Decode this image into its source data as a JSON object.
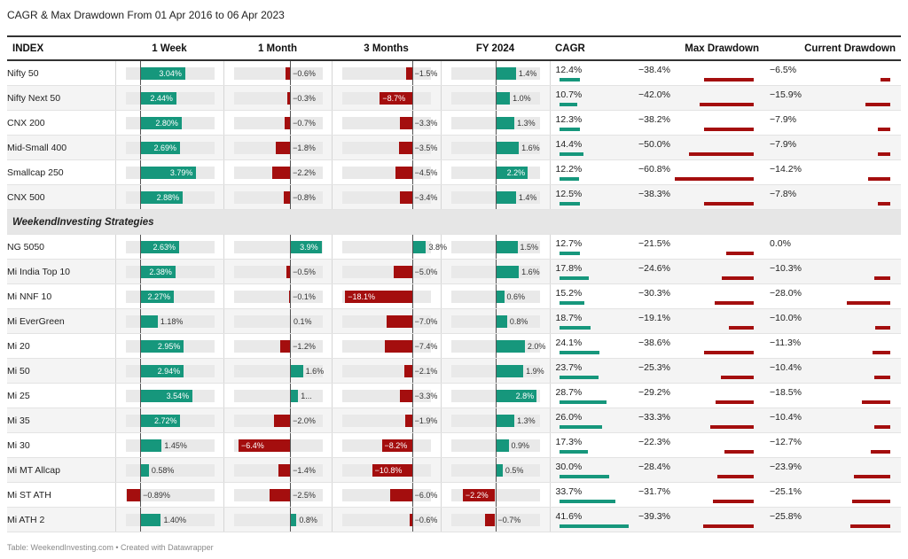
{
  "title": "CAGR & Max Drawdown From 01 Apr 2016 to 06 Apr 2023",
  "footer": "Table: WeekendInvesting.com • Created with Datawrapper",
  "colors": {
    "positive": "#16977c",
    "negative": "#a40e0e",
    "track": "#e9e9e9"
  },
  "chart_data": {
    "type": "table",
    "columns": [
      "INDEX",
      "1 Week",
      "1 Month",
      "3 Months",
      "FY 2024",
      "CAGR",
      "Max Drawdown",
      "Current Drawdown"
    ],
    "section_label": "WeekendInvesting Strategies",
    "indices": [
      {
        "name": "Nifty 50",
        "w1": "3.04%",
        "m1": "−0.6%",
        "m3": "−1.5%",
        "fy": "1.4%",
        "cagr": "12.4%",
        "maxdd": "−38.4%",
        "curdd": "−6.5%"
      },
      {
        "name": "Nifty Next 50",
        "w1": "2.44%",
        "m1": "−0.3%",
        "m3": "−8.7%",
        "fy": "1.0%",
        "cagr": "10.7%",
        "maxdd": "−42.0%",
        "curdd": "−15.9%"
      },
      {
        "name": "CNX 200",
        "w1": "2.80%",
        "m1": "−0.7%",
        "m3": "−3.3%",
        "fy": "1.3%",
        "cagr": "12.3%",
        "maxdd": "−38.2%",
        "curdd": "−7.9%"
      },
      {
        "name": "Mid-Small 400",
        "w1": "2.69%",
        "m1": "−1.8%",
        "m3": "−3.5%",
        "fy": "1.6%",
        "cagr": "14.4%",
        "maxdd": "−50.0%",
        "curdd": "−7.9%"
      },
      {
        "name": "Smallcap 250",
        "w1": "3.79%",
        "m1": "−2.2%",
        "m3": "−4.5%",
        "fy": "2.2%",
        "cagr": "12.2%",
        "maxdd": "−60.8%",
        "curdd": "−14.2%"
      },
      {
        "name": "CNX 500",
        "w1": "2.88%",
        "m1": "−0.8%",
        "m3": "−3.4%",
        "fy": "1.4%",
        "cagr": "12.5%",
        "maxdd": "−38.3%",
        "curdd": "−7.8%"
      }
    ],
    "strategies": [
      {
        "name": "NG 5050",
        "w1": "2.63%",
        "m1": "3.9%",
        "m3": "3.8%",
        "fy": "1.5%",
        "cagr": "12.7%",
        "maxdd": "−21.5%",
        "curdd": "0.0%"
      },
      {
        "name": "Mi India Top 10",
        "w1": "2.38%",
        "m1": "−0.5%",
        "m3": "−5.0%",
        "fy": "1.6%",
        "cagr": "17.8%",
        "maxdd": "−24.6%",
        "curdd": "−10.3%"
      },
      {
        "name": "Mi NNF 10",
        "w1": "2.27%",
        "m1": "−0.1%",
        "m3": "−18.1%",
        "fy": "0.6%",
        "cagr": "15.2%",
        "maxdd": "−30.3%",
        "curdd": "−28.0%"
      },
      {
        "name": "Mi EverGreen",
        "w1": "1.18%",
        "m1": "0.1%",
        "m3": "−7.0%",
        "fy": "0.8%",
        "cagr": "18.7%",
        "maxdd": "−19.1%",
        "curdd": "−10.0%"
      },
      {
        "name": "Mi 20",
        "w1": "2.95%",
        "m1": "−1.2%",
        "m3": "−7.4%",
        "fy": "2.0%",
        "cagr": "24.1%",
        "maxdd": "−38.6%",
        "curdd": "−11.3%"
      },
      {
        "name": "Mi 50",
        "w1": "2.94%",
        "m1": "1.6%",
        "m3": "−2.1%",
        "fy": "1.9%",
        "cagr": "23.7%",
        "maxdd": "−25.3%",
        "curdd": "−10.4%"
      },
      {
        "name": "Mi 25",
        "w1": "3.54%",
        "m1": "1...",
        "m3": "−3.3%",
        "fy": "2.8%",
        "cagr": "28.7%",
        "maxdd": "−29.2%",
        "curdd": "−18.5%"
      },
      {
        "name": "Mi 35",
        "w1": "2.72%",
        "m1": "−2.0%",
        "m3": "−1.9%",
        "fy": "1.3%",
        "cagr": "26.0%",
        "maxdd": "−33.3%",
        "curdd": "−10.4%"
      },
      {
        "name": "Mi 30",
        "w1": "1.45%",
        "m1": "−6.4%",
        "m3": "−8.2%",
        "fy": "0.9%",
        "cagr": "17.3%",
        "maxdd": "−22.3%",
        "curdd": "−12.7%"
      },
      {
        "name": "Mi MT Allcap",
        "w1": "0.58%",
        "m1": "−1.4%",
        "m3": "−10.8%",
        "fy": "0.5%",
        "cagr": "30.0%",
        "maxdd": "−28.4%",
        "curdd": "−23.9%"
      },
      {
        "name": "Mi ST ATH",
        "w1": "−0.89%",
        "m1": "−2.5%",
        "m3": "−6.0%",
        "fy": "−2.2%",
        "cagr": "33.7%",
        "maxdd": "−31.7%",
        "curdd": "−25.1%"
      },
      {
        "name": "Mi ATH 2",
        "w1": "1.40%",
        "m1": "0.8%",
        "m3": "−0.6%",
        "fy": "−0.7%",
        "cagr": "41.6%",
        "maxdd": "−39.3%",
        "curdd": "−25.8%"
      }
    ]
  }
}
